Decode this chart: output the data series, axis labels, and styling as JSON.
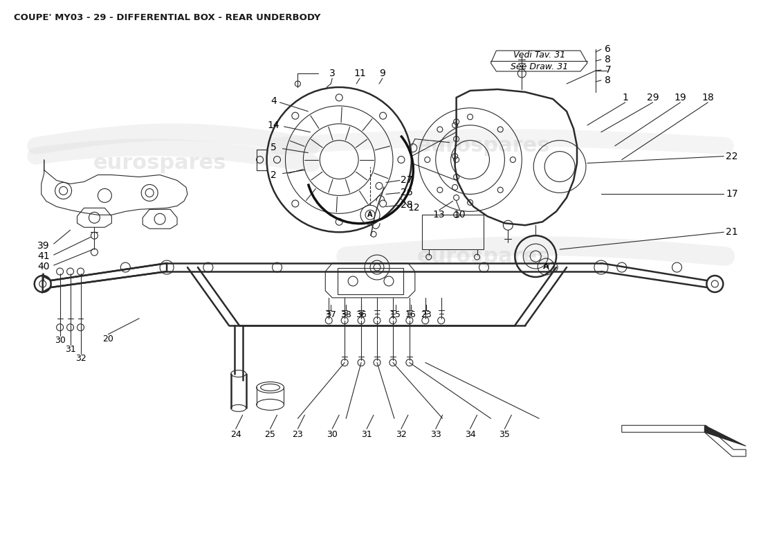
{
  "title": "COUPE' MY03 - 29 - DIFFERENTIAL BOX - REAR UNDERBODY",
  "title_fontsize": 9.5,
  "title_color": "#1a1a1a",
  "bg_color": "#ffffff",
  "line_color": "#2a2a2a",
  "watermark_color": "#d0d0d0",
  "watermark_alpha": 0.45,
  "annotation_fontsize": 10,
  "annotation_color": "#000000",
  "fig_width": 11.0,
  "fig_height": 8.0,
  "note_text_it": "Vedi Tav. 31",
  "note_text_en": "See Draw. 31"
}
